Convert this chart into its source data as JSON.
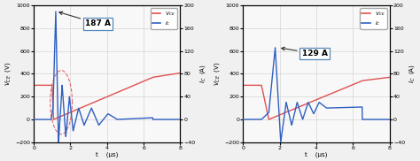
{
  "left": {
    "annotation": "187 A",
    "vce_color": "#e05050",
    "ic_color": "#3060c0",
    "ylim_left": [
      -200,
      1000
    ],
    "ylim_right": [
      -40,
      200
    ],
    "yticks_left": [
      -200,
      0,
      200,
      400,
      600,
      800,
      1000
    ],
    "yticks_right": [
      -40,
      0,
      40,
      80,
      120,
      160,
      200
    ],
    "xlim": [
      0,
      8
    ],
    "xticks": [
      0,
      2,
      4,
      6,
      8
    ],
    "xlabel": "t    (μs)",
    "ylabel_left": "V_CE (V)",
    "ylabel_right": "I_C (A)"
  },
  "right": {
    "annotation": "129 A",
    "vce_color": "#e05050",
    "ic_color": "#3060c0",
    "ylim_left": [
      -200,
      1000
    ],
    "ylim_right": [
      -40,
      200
    ],
    "yticks_left": [
      -200,
      0,
      200,
      400,
      600,
      800,
      1000
    ],
    "yticks_right": [
      -40,
      0,
      40,
      80,
      120,
      160,
      200
    ],
    "xlim": [
      0,
      8
    ],
    "xticks": [
      0,
      2,
      4,
      6,
      8
    ],
    "xlabel": "t    (μs)",
    "ylabel_left": "V_CE (V)",
    "ylabel_right": "I_C (A)"
  },
  "bg_color": "#f0f0f0",
  "plot_bg": "#f8f8f8",
  "grid_color": "#cccccc"
}
